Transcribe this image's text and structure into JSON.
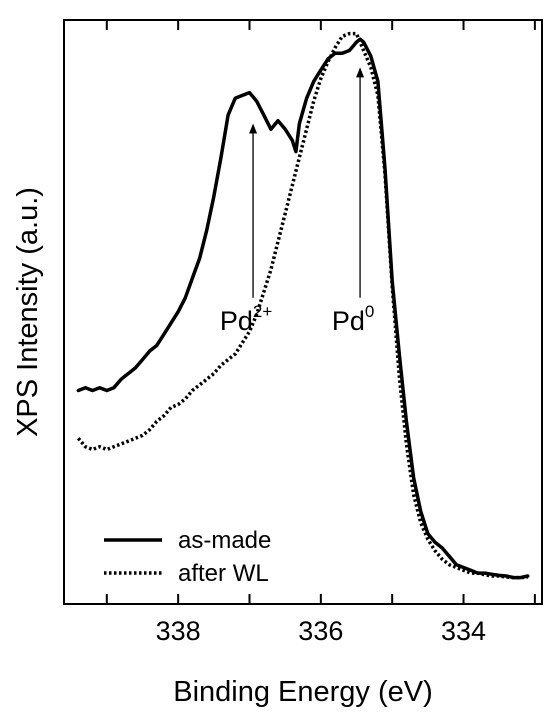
{
  "chart_data": {
    "type": "line",
    "title": "",
    "xlabel": "Binding Energy (eV)",
    "ylabel": "XPS Intensity (a.u.)",
    "xlim": [
      339.5,
      333.0
    ],
    "x_reversed": true,
    "ylim": [
      0,
      1
    ],
    "y_tick_labels": false,
    "x_ticks_labeled": [
      338,
      336,
      334
    ],
    "x_ticks_minor": [
      339,
      337,
      335,
      333
    ],
    "grid": false,
    "legend": "bottom-left",
    "series": [
      {
        "name": "as-made",
        "style": "solid",
        "color": "#000000",
        "x": [
          339.4,
          339.3,
          339.2,
          339.1,
          339.0,
          338.9,
          338.8,
          338.7,
          338.6,
          338.5,
          338.4,
          338.3,
          338.2,
          338.1,
          338.0,
          337.9,
          337.8,
          337.7,
          337.6,
          337.5,
          337.4,
          337.3,
          337.2,
          337.1,
          337.0,
          336.9,
          336.8,
          336.7,
          336.6,
          336.5,
          336.4,
          336.35,
          336.3,
          336.2,
          336.1,
          336.0,
          335.9,
          335.8,
          335.7,
          335.6,
          335.5,
          335.45,
          335.4,
          335.3,
          335.2,
          335.1,
          335.0,
          334.9,
          334.8,
          334.7,
          334.6,
          334.5,
          334.4,
          334.3,
          334.2,
          334.1,
          334.0,
          333.9,
          333.8,
          333.7,
          333.6,
          333.5,
          333.4,
          333.3,
          333.2,
          333.1
        ],
        "y": [
          0.355,
          0.36,
          0.355,
          0.36,
          0.355,
          0.36,
          0.375,
          0.385,
          0.395,
          0.41,
          0.425,
          0.435,
          0.455,
          0.475,
          0.495,
          0.52,
          0.555,
          0.59,
          0.64,
          0.7,
          0.77,
          0.845,
          0.875,
          0.88,
          0.885,
          0.87,
          0.845,
          0.82,
          0.835,
          0.82,
          0.8,
          0.78,
          0.83,
          0.875,
          0.905,
          0.925,
          0.945,
          0.955,
          0.955,
          0.96,
          0.975,
          0.98,
          0.975,
          0.95,
          0.905,
          0.75,
          0.55,
          0.42,
          0.3,
          0.2,
          0.14,
          0.1,
          0.085,
          0.075,
          0.06,
          0.045,
          0.04,
          0.035,
          0.03,
          0.03,
          0.028,
          0.026,
          0.025,
          0.022,
          0.022,
          0.025
        ]
      },
      {
        "name": "after WL",
        "style": "dotted",
        "color": "#000000",
        "x": [
          339.4,
          339.3,
          339.2,
          339.1,
          339.0,
          338.9,
          338.8,
          338.7,
          338.6,
          338.5,
          338.4,
          338.3,
          338.2,
          338.1,
          338.0,
          337.9,
          337.8,
          337.7,
          337.6,
          337.5,
          337.4,
          337.3,
          337.2,
          337.1,
          337.0,
          336.9,
          336.8,
          336.7,
          336.6,
          336.5,
          336.4,
          336.3,
          336.2,
          336.1,
          336.0,
          335.9,
          335.8,
          335.7,
          335.6,
          335.5,
          335.4,
          335.3,
          335.2,
          335.1,
          335.0,
          334.9,
          334.8,
          334.7,
          334.6,
          334.5,
          334.4,
          334.3,
          334.2,
          334.1,
          334.0,
          333.9,
          333.8,
          333.7,
          333.6,
          333.5,
          333.4,
          333.3,
          333.2,
          333.1
        ],
        "y": [
          0.27,
          0.255,
          0.25,
          0.255,
          0.25,
          0.255,
          0.26,
          0.265,
          0.27,
          0.275,
          0.285,
          0.3,
          0.31,
          0.325,
          0.33,
          0.34,
          0.355,
          0.365,
          0.375,
          0.385,
          0.4,
          0.41,
          0.42,
          0.44,
          0.46,
          0.49,
          0.53,
          0.57,
          0.62,
          0.67,
          0.72,
          0.77,
          0.82,
          0.87,
          0.91,
          0.94,
          0.965,
          0.985,
          0.99,
          0.99,
          0.96,
          0.93,
          0.88,
          0.74,
          0.54,
          0.38,
          0.26,
          0.17,
          0.12,
          0.09,
          0.07,
          0.055,
          0.045,
          0.04,
          0.035,
          0.03,
          0.03,
          0.027,
          0.025,
          0.025,
          0.023,
          0.022,
          0.022,
          0.023
        ]
      }
    ],
    "annotations": [
      {
        "base": "Pd",
        "sup": "2+",
        "x": 336.95,
        "arrow_from_y": 0.52,
        "arrow_to_y": 0.83
      },
      {
        "base": "Pd",
        "sup": "0",
        "x": 335.45,
        "arrow_from_y": 0.52,
        "arrow_to_y": 0.93
      }
    ]
  }
}
